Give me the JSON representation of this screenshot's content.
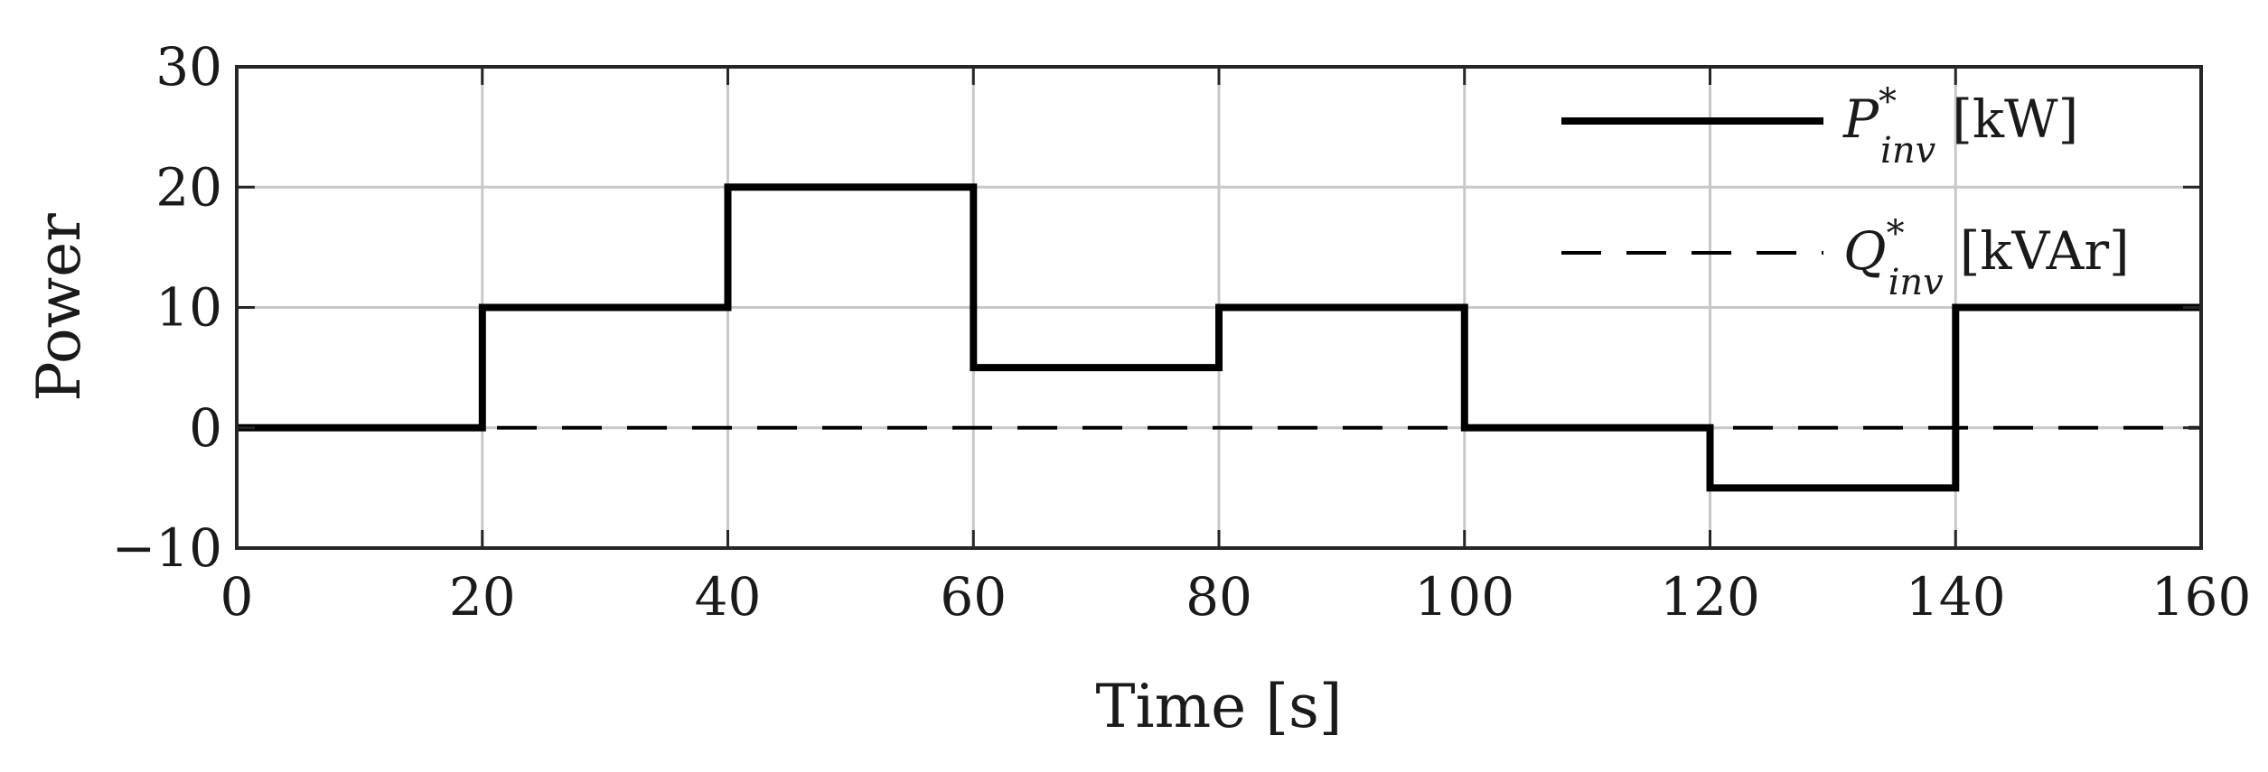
{
  "chart_data": {
    "type": "line",
    "title": "",
    "xlabel": "Time [s]",
    "ylabel": "Power",
    "xlim": [
      0,
      160
    ],
    "ylim": [
      -10,
      30
    ],
    "xticks": [
      0,
      20,
      40,
      60,
      80,
      100,
      120,
      140,
      160
    ],
    "xtick_labels": [
      "0",
      "20",
      "40",
      "60",
      "80",
      "100",
      "120",
      "140",
      "160"
    ],
    "yticks": [
      -10,
      0,
      10,
      20,
      30
    ],
    "ytick_labels": [
      "−10",
      "0",
      "10",
      "20",
      "30"
    ],
    "grid": true,
    "legend_position": "top-right",
    "series": [
      {
        "name": "P*inv [kW]",
        "symbol": "P",
        "superscript": "*",
        "subscript": "inv",
        "unit": "[kW]",
        "style": "solid",
        "color": "#000000",
        "step": true,
        "x": [
          0,
          20,
          20,
          40,
          40,
          60,
          60,
          80,
          80,
          100,
          100,
          120,
          120,
          140,
          140,
          160
        ],
        "y": [
          0,
          0,
          10,
          10,
          20,
          20,
          5,
          5,
          10,
          10,
          0,
          0,
          -5,
          -5,
          10,
          10
        ]
      },
      {
        "name": "Q*inv [kVAr]",
        "symbol": "Q",
        "superscript": "*",
        "subscript": "inv",
        "unit": "[kVAr]",
        "style": "dashed",
        "color": "#000000",
        "step": false,
        "x": [
          0,
          160
        ],
        "y": [
          0,
          0
        ]
      }
    ]
  }
}
